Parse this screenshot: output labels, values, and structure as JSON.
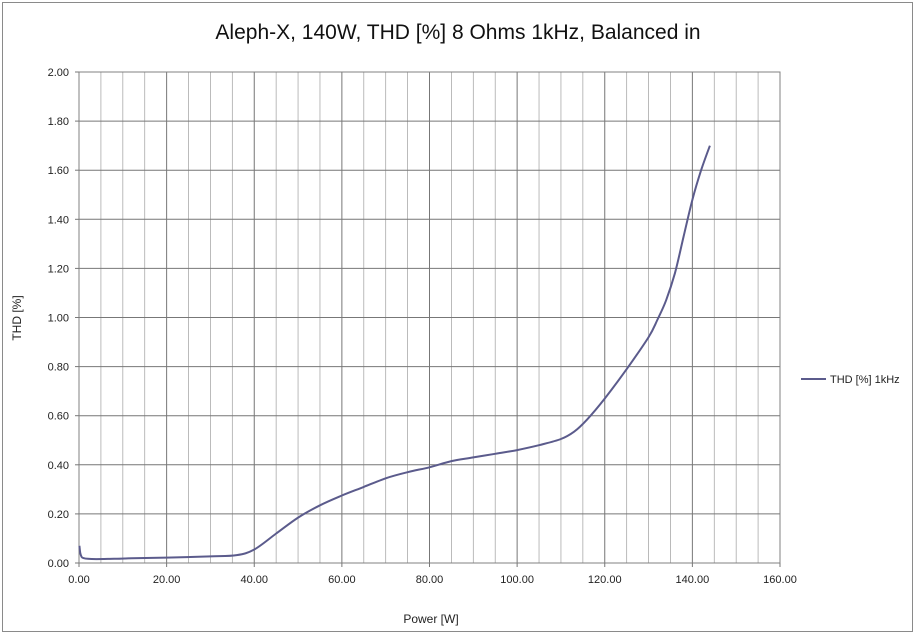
{
  "chart_data": {
    "type": "line",
    "title": "Aleph-X, 140W, THD [%] 8 Ohms 1kHz, Balanced in",
    "xlabel": "Power [W]",
    "ylabel": "THD [%]",
    "xlim": [
      0,
      160
    ],
    "ylim": [
      0,
      2
    ],
    "x_ticks": [
      "0.00",
      "20.00",
      "40.00",
      "60.00",
      "80.00",
      "100.00",
      "120.00",
      "140.00",
      "160.00"
    ],
    "y_ticks": [
      "0.00",
      "0.20",
      "0.40",
      "0.60",
      "0.80",
      "1.00",
      "1.20",
      "1.40",
      "1.60",
      "1.80",
      "2.00"
    ],
    "grid": true,
    "legend_position": "right",
    "series": [
      {
        "name": "THD [%] 1kHz",
        "color": "#5b5b8c",
        "x": [
          0.1,
          0.3,
          0.6,
          1,
          2,
          4,
          8,
          12,
          20,
          30,
          36,
          40,
          45,
          50,
          55,
          60,
          65,
          70,
          75,
          80,
          85,
          90,
          95,
          100,
          105,
          110,
          113,
          116,
          120,
          125,
          130,
          132,
          134,
          136,
          138,
          140,
          142,
          144
        ],
        "values": [
          0.07,
          0.04,
          0.025,
          0.02,
          0.017,
          0.016,
          0.017,
          0.019,
          0.022,
          0.027,
          0.032,
          0.055,
          0.12,
          0.185,
          0.235,
          0.275,
          0.31,
          0.345,
          0.37,
          0.39,
          0.415,
          0.43,
          0.445,
          0.46,
          0.48,
          0.505,
          0.535,
          0.585,
          0.67,
          0.79,
          0.92,
          0.99,
          1.07,
          1.18,
          1.33,
          1.48,
          1.6,
          1.7
        ]
      }
    ]
  }
}
